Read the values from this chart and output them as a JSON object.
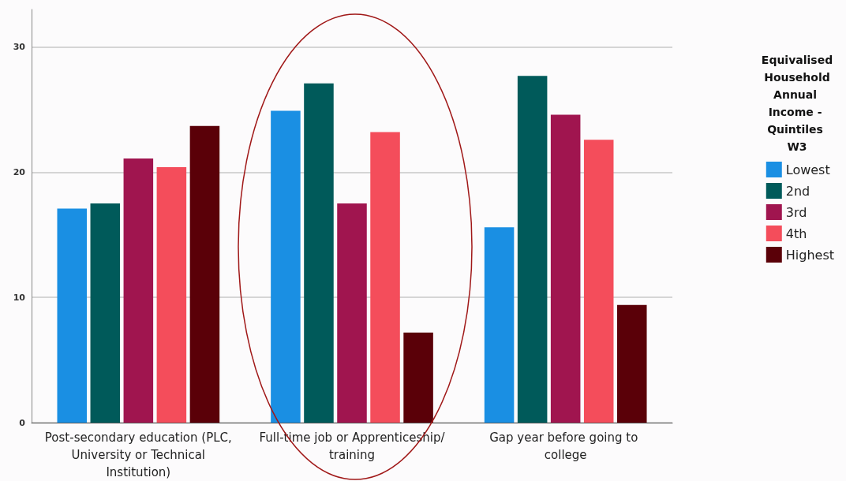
{
  "chart_data": {
    "type": "bar",
    "categories": [
      "Post-secondary education (PLC, University or Technical Institution)",
      "Full-time job or Apprenticeship/training",
      "Gap year before going to college"
    ],
    "series": [
      {
        "name": "Lowest",
        "color": "#1a8fe3",
        "values": [
          17.1,
          24.9,
          15.6
        ]
      },
      {
        "name": "2nd",
        "color": "#005a5a",
        "values": [
          17.5,
          27.1,
          27.7
        ]
      },
      {
        "name": "3rd",
        "color": "#a0154f",
        "values": [
          21.1,
          17.5,
          24.6
        ]
      },
      {
        "name": "4th",
        "color": "#f44d5b",
        "values": [
          20.4,
          23.2,
          22.6
        ]
      },
      {
        "name": "Highest",
        "color": "#5a0008",
        "values": [
          23.7,
          7.2,
          9.4
        ]
      }
    ],
    "legend_title": "Equivalised Household Annual Income - Quintiles W3",
    "ylim": [
      0,
      33
    ],
    "yticks": [
      0,
      10,
      20,
      30
    ],
    "grid": "y",
    "legend": "right"
  }
}
